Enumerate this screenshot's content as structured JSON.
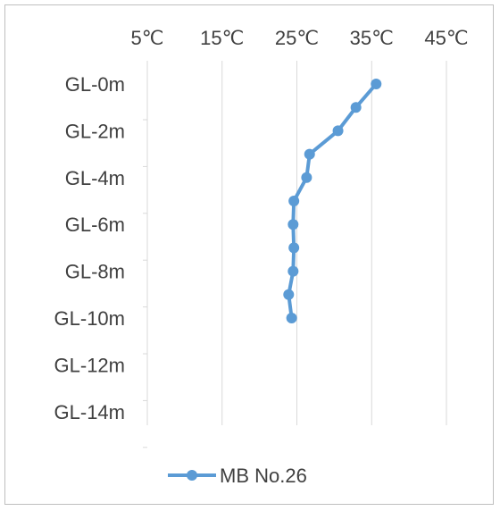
{
  "chart_data": {
    "type": "line",
    "title": "",
    "xlabel": "",
    "ylabel": "",
    "x_axis_position": "top",
    "x_ticks": [
      "5℃",
      "15℃",
      "25℃",
      "35℃",
      "45℃"
    ],
    "xlim": [
      5,
      45
    ],
    "y_ticks": [
      "GL-0m",
      "GL-2m",
      "GL-4m",
      "GL-6m",
      "GL-8m",
      "GL-10m",
      "GL-12m",
      "GL-14m"
    ],
    "ylim_depth_m": [
      0,
      14
    ],
    "y_inverted": true,
    "grid": "vertical",
    "legend_position": "bottom",
    "series": [
      {
        "name": "MB No.26",
        "color": "#5b9bd5",
        "depth_m": [
          0,
          1,
          2,
          3,
          4,
          5,
          6,
          7,
          8,
          9,
          10
        ],
        "temperature_c": [
          35.6,
          32.9,
          30.5,
          26.7,
          26.3,
          24.6,
          24.5,
          24.6,
          24.5,
          23.9,
          24.3
        ]
      }
    ]
  }
}
